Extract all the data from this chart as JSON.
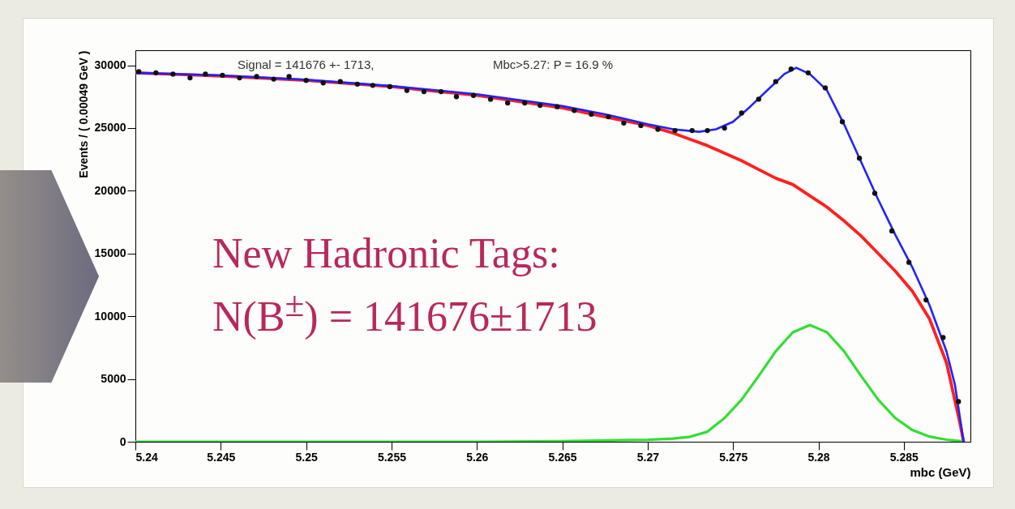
{
  "chart_data": {
    "type": "line",
    "xlabel": "mbc (GeV)",
    "ylabel": "Events / ( 0.00049 GeV )",
    "xlim": [
      5.24,
      5.2889
    ],
    "xticks": [
      5.24,
      5.245,
      5.25,
      5.255,
      5.26,
      5.265,
      5.27,
      5.275,
      5.28,
      5.285
    ],
    "ylim": [
      0,
      31200
    ],
    "yticks": [
      0,
      5000,
      10000,
      15000,
      20000,
      25000,
      30000
    ],
    "grid": false,
    "line_style": "solid",
    "annotations": [
      "Signal =  141676 +-  1713,",
      "Mbc>5.27: P = 16.9 %",
      "New Hadronic Tags:\nN(B$^{±}$) = 141676±1713"
    ],
    "series": [
      {
        "color": "#ff2020",
        "x": [
          5.24,
          5.245,
          5.25,
          5.255,
          5.26,
          5.265,
          5.2675,
          5.27,
          5.2715,
          5.2725,
          5.2735,
          5.2745,
          5.2755,
          5.2765,
          5.2775,
          5.2785,
          5.2795,
          5.2805,
          5.2815,
          5.2825,
          5.2835,
          5.2845,
          5.2855,
          5.2865,
          5.2875,
          5.2883,
          5.2885
        ],
        "values": [
          29400,
          29150,
          28800,
          28300,
          27600,
          26600,
          25900,
          25200,
          24600,
          24100,
          23600,
          23000,
          22400,
          21700,
          21000,
          20500,
          19600,
          18700,
          17600,
          16400,
          15000,
          13600,
          12000,
          9800,
          6300,
          1400,
          0
        ]
      },
      {
        "color": "#33dd33",
        "x": [
          5.24,
          5.26,
          5.265,
          5.27,
          5.2715,
          5.2725,
          5.2735,
          5.2745,
          5.2755,
          5.2765,
          5.2775,
          5.2785,
          5.2795,
          5.2805,
          5.2815,
          5.2825,
          5.2835,
          5.2845,
          5.2855,
          5.2865,
          5.2875,
          5.2885
        ],
        "values": [
          0,
          0,
          50,
          150,
          250,
          400,
          800,
          1890,
          3350,
          5240,
          7210,
          8720,
          9300,
          8720,
          7210,
          5240,
          3350,
          1890,
          930,
          410,
          160,
          20
        ]
      },
      {
        "color": "#2222ff",
        "x": [
          5.24,
          5.245,
          5.25,
          5.255,
          5.26,
          5.265,
          5.2675,
          5.27,
          5.2715,
          5.273,
          5.274,
          5.275,
          5.276,
          5.277,
          5.278,
          5.2787,
          5.2795,
          5.2805,
          5.2815,
          5.2825,
          5.2835,
          5.2845,
          5.2855,
          5.2865,
          5.2875,
          5.288,
          5.2885
        ],
        "values": [
          29400,
          29200,
          28850,
          28350,
          27700,
          26750,
          26100,
          25300,
          24900,
          24700,
          24900,
          25500,
          26700,
          28000,
          29300,
          29800,
          29300,
          28000,
          25300,
          22300,
          19300,
          16500,
          13900,
          10900,
          7200,
          4500,
          0
        ]
      },
      {
        "type": "scatter",
        "marker": "circle",
        "color": "#111111",
        "x": [
          5.2402,
          5.2412,
          5.2422,
          5.2432,
          5.2441,
          5.2451,
          5.2461,
          5.2471,
          5.2481,
          5.249,
          5.25,
          5.251,
          5.252,
          5.253,
          5.2539,
          5.2549,
          5.2559,
          5.2569,
          5.2579,
          5.2588,
          5.2598,
          5.2608,
          5.2618,
          5.2628,
          5.2637,
          5.2647,
          5.2657,
          5.2667,
          5.2677,
          5.2686,
          5.2696,
          5.2706,
          5.2716,
          5.2726,
          5.2735,
          5.2745,
          5.2755,
          5.2765,
          5.2775,
          5.2784,
          5.2794,
          5.2804,
          5.2814,
          5.2824,
          5.2833,
          5.2843,
          5.2853,
          5.2863,
          5.2873,
          5.2882
        ],
        "values": [
          29500,
          29400,
          29300,
          29000,
          29300,
          29200,
          29000,
          29100,
          28900,
          29100,
          28800,
          28600,
          28700,
          28500,
          28400,
          28300,
          28000,
          27900,
          27900,
          27500,
          27600,
          27300,
          27000,
          27000,
          26800,
          26700,
          26400,
          26100,
          25900,
          25400,
          25200,
          24900,
          24800,
          24800,
          24800,
          25000,
          26200,
          27300,
          28700,
          29700,
          29400,
          28200,
          25500,
          22600,
          19800,
          16800,
          14300,
          11300,
          8300,
          3200
        ]
      }
    ]
  }
}
